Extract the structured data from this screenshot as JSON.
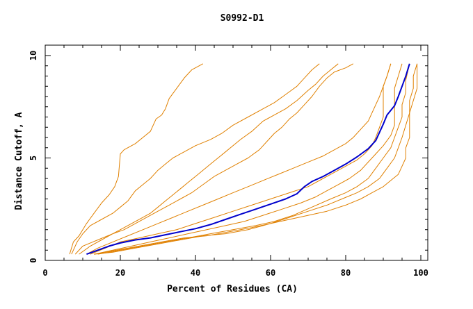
{
  "chart_data": {
    "type": "line",
    "title": "S0992-D1",
    "xlabel": "Percent of Residues (CA)",
    "ylabel": "Distance Cutoff, A",
    "xlim": [
      0,
      100
    ],
    "ylim": [
      0,
      10
    ],
    "x_ticks": [
      0,
      20,
      40,
      60,
      80,
      100
    ],
    "y_ticks": [
      0,
      5,
      10
    ],
    "grid": false,
    "highlight_color": "#0000cc",
    "other_color": "#e08000",
    "series": [
      {
        "highlight": false,
        "points": [
          [
            6.5,
            0.3
          ],
          [
            7.5,
            0.9
          ],
          [
            9,
            1.2
          ],
          [
            11,
            1.8
          ],
          [
            13,
            2.3
          ],
          [
            15,
            2.8
          ],
          [
            17,
            3.2
          ],
          [
            18.5,
            3.6
          ],
          [
            19.5,
            4.1
          ],
          [
            20,
            5.2
          ],
          [
            21,
            5.4
          ],
          [
            24,
            5.7
          ],
          [
            26,
            6.0
          ],
          [
            28,
            6.3
          ],
          [
            29.5,
            6.9
          ],
          [
            31,
            7.1
          ],
          [
            32,
            7.4
          ],
          [
            33,
            7.9
          ],
          [
            35,
            8.4
          ],
          [
            37,
            8.9
          ],
          [
            39,
            9.3
          ],
          [
            42,
            9.6
          ]
        ]
      },
      {
        "highlight": false,
        "points": [
          [
            7,
            0.3
          ],
          [
            8.5,
            0.9
          ],
          [
            10,
            1.3
          ],
          [
            12,
            1.7
          ],
          [
            15,
            2.0
          ],
          [
            18,
            2.3
          ],
          [
            20,
            2.6
          ],
          [
            22,
            2.9
          ],
          [
            24,
            3.4
          ],
          [
            26,
            3.7
          ],
          [
            28,
            4.0
          ],
          [
            30,
            4.4
          ],
          [
            32,
            4.7
          ],
          [
            34,
            5.0
          ],
          [
            37,
            5.3
          ],
          [
            40,
            5.6
          ],
          [
            44,
            5.9
          ],
          [
            47,
            6.2
          ],
          [
            50,
            6.6
          ],
          [
            54,
            7.0
          ],
          [
            58,
            7.4
          ],
          [
            61,
            7.7
          ],
          [
            64,
            8.1
          ],
          [
            67,
            8.5
          ],
          [
            69,
            8.9
          ],
          [
            71,
            9.3
          ],
          [
            73,
            9.6
          ]
        ]
      },
      {
        "highlight": false,
        "points": [
          [
            8,
            0.3
          ],
          [
            10,
            0.7
          ],
          [
            14,
            1.0
          ],
          [
            18,
            1.3
          ],
          [
            21,
            1.6
          ],
          [
            24,
            1.9
          ],
          [
            26,
            2.1
          ],
          [
            28,
            2.3
          ],
          [
            30,
            2.6
          ],
          [
            32,
            2.9
          ],
          [
            34,
            3.2
          ],
          [
            36,
            3.5
          ],
          [
            38,
            3.8
          ],
          [
            40,
            4.1
          ],
          [
            42,
            4.4
          ],
          [
            44,
            4.7
          ],
          [
            46,
            5.0
          ],
          [
            48,
            5.3
          ],
          [
            50,
            5.6
          ],
          [
            52,
            5.9
          ],
          [
            55,
            6.3
          ],
          [
            58,
            6.8
          ],
          [
            61,
            7.1
          ],
          [
            64,
            7.4
          ],
          [
            67,
            7.8
          ],
          [
            70,
            8.3
          ],
          [
            72,
            8.6
          ],
          [
            74,
            9.0
          ],
          [
            76,
            9.3
          ],
          [
            78,
            9.6
          ]
        ]
      },
      {
        "highlight": false,
        "points": [
          [
            9,
            0.3
          ],
          [
            12,
            0.7
          ],
          [
            15,
            1.0
          ],
          [
            18,
            1.3
          ],
          [
            21,
            1.5
          ],
          [
            24,
            1.8
          ],
          [
            27,
            2.1
          ],
          [
            30,
            2.4
          ],
          [
            33,
            2.7
          ],
          [
            36,
            3.0
          ],
          [
            39,
            3.3
          ],
          [
            42,
            3.7
          ],
          [
            45,
            4.1
          ],
          [
            48,
            4.4
          ],
          [
            51,
            4.7
          ],
          [
            54,
            5.0
          ],
          [
            57,
            5.4
          ],
          [
            59,
            5.8
          ],
          [
            61,
            6.2
          ],
          [
            63,
            6.5
          ],
          [
            65,
            6.9
          ],
          [
            67,
            7.2
          ],
          [
            69,
            7.6
          ],
          [
            71,
            8.0
          ],
          [
            73,
            8.5
          ],
          [
            75,
            8.9
          ],
          [
            77,
            9.2
          ],
          [
            80,
            9.4
          ],
          [
            82,
            9.6
          ]
        ]
      },
      {
        "highlight": false,
        "points": [
          [
            11,
            0.3
          ],
          [
            14,
            0.6
          ],
          [
            18,
            0.9
          ],
          [
            22,
            1.2
          ],
          [
            26,
            1.5
          ],
          [
            30,
            1.8
          ],
          [
            34,
            2.1
          ],
          [
            38,
            2.4
          ],
          [
            42,
            2.7
          ],
          [
            46,
            3.0
          ],
          [
            50,
            3.3
          ],
          [
            54,
            3.6
          ],
          [
            58,
            3.9
          ],
          [
            62,
            4.2
          ],
          [
            66,
            4.5
          ],
          [
            70,
            4.8
          ],
          [
            74,
            5.1
          ],
          [
            77,
            5.4
          ],
          [
            80,
            5.7
          ],
          [
            82,
            6.0
          ],
          [
            84,
            6.4
          ],
          [
            86,
            6.8
          ],
          [
            87,
            7.2
          ],
          [
            88,
            7.6
          ],
          [
            89,
            8.0
          ],
          [
            90,
            8.5
          ],
          [
            91,
            9.0
          ],
          [
            92,
            9.6
          ]
        ]
      },
      {
        "highlight": false,
        "points": [
          [
            12,
            0.3
          ],
          [
            16,
            0.6
          ],
          [
            20,
            0.9
          ],
          [
            25,
            1.1
          ],
          [
            30,
            1.3
          ],
          [
            35,
            1.5
          ],
          [
            40,
            1.8
          ],
          [
            45,
            2.1
          ],
          [
            50,
            2.4
          ],
          [
            55,
            2.7
          ],
          [
            60,
            3.0
          ],
          [
            65,
            3.3
          ],
          [
            70,
            3.6
          ],
          [
            74,
            4.0
          ],
          [
            77,
            4.3
          ],
          [
            80,
            4.6
          ],
          [
            83,
            4.9
          ],
          [
            85,
            5.2
          ],
          [
            87,
            5.6
          ],
          [
            88,
            6.0
          ],
          [
            89,
            6.5
          ],
          [
            90,
            7.0
          ],
          [
            90,
            7.5
          ],
          [
            90,
            8.0
          ],
          [
            90,
            8.5
          ],
          [
            91,
            9.0
          ],
          [
            92,
            9.6
          ]
        ]
      },
      {
        "highlight": false,
        "points": [
          [
            13,
            0.3
          ],
          [
            18,
            0.5
          ],
          [
            23,
            0.7
          ],
          [
            28,
            0.9
          ],
          [
            33,
            1.1
          ],
          [
            38,
            1.3
          ],
          [
            43,
            1.5
          ],
          [
            48,
            1.7
          ],
          [
            53,
            1.9
          ],
          [
            58,
            2.2
          ],
          [
            63,
            2.5
          ],
          [
            68,
            2.8
          ],
          [
            72,
            3.1
          ],
          [
            75,
            3.4
          ],
          [
            78,
            3.7
          ],
          [
            81,
            4.0
          ],
          [
            84,
            4.4
          ],
          [
            86,
            4.8
          ],
          [
            88,
            5.2
          ],
          [
            90,
            5.6
          ],
          [
            92,
            6.1
          ],
          [
            93,
            6.6
          ],
          [
            93,
            7.2
          ],
          [
            93,
            7.8
          ],
          [
            93,
            8.4
          ],
          [
            94,
            9.0
          ],
          [
            95,
            9.6
          ]
        ]
      },
      {
        "highlight": false,
        "points": [
          [
            14,
            0.3
          ],
          [
            20,
            0.5
          ],
          [
            26,
            0.7
          ],
          [
            32,
            0.9
          ],
          [
            38,
            1.1
          ],
          [
            44,
            1.3
          ],
          [
            50,
            1.5
          ],
          [
            56,
            1.7
          ],
          [
            61,
            1.9
          ],
          [
            66,
            2.2
          ],
          [
            71,
            2.6
          ],
          [
            76,
            3.0
          ],
          [
            80,
            3.3
          ],
          [
            83,
            3.6
          ],
          [
            86,
            4.0
          ],
          [
            88,
            4.5
          ],
          [
            90,
            5.0
          ],
          [
            92,
            5.5
          ],
          [
            93,
            6.0
          ],
          [
            94,
            6.5
          ],
          [
            95,
            7.0
          ],
          [
            95,
            7.6
          ],
          [
            96,
            8.2
          ],
          [
            96,
            8.8
          ],
          [
            97,
            9.6
          ]
        ]
      },
      {
        "highlight": false,
        "points": [
          [
            13,
            0.3
          ],
          [
            19,
            0.5
          ],
          [
            25,
            0.7
          ],
          [
            31,
            0.9
          ],
          [
            37,
            1.1
          ],
          [
            43,
            1.2
          ],
          [
            49,
            1.4
          ],
          [
            55,
            1.6
          ],
          [
            60,
            1.8
          ],
          [
            65,
            2.1
          ],
          [
            70,
            2.4
          ],
          [
            75,
            2.7
          ],
          [
            79,
            3.0
          ],
          [
            83,
            3.3
          ],
          [
            86,
            3.6
          ],
          [
            89,
            4.0
          ],
          [
            91,
            4.5
          ],
          [
            93,
            5.0
          ],
          [
            94,
            5.5
          ],
          [
            95,
            6.0
          ],
          [
            96,
            6.6
          ],
          [
            97,
            7.2
          ],
          [
            97,
            7.8
          ],
          [
            98,
            8.4
          ],
          [
            98,
            9.0
          ],
          [
            99,
            9.6
          ]
        ]
      },
      {
        "highlight": false,
        "points": [
          [
            13,
            0.3
          ],
          [
            18,
            0.4
          ],
          [
            24,
            0.6
          ],
          [
            30,
            0.8
          ],
          [
            36,
            1.0
          ],
          [
            42,
            1.2
          ],
          [
            48,
            1.3
          ],
          [
            54,
            1.5
          ],
          [
            60,
            1.8
          ],
          [
            65,
            2.0
          ],
          [
            70,
            2.2
          ],
          [
            75,
            2.4
          ],
          [
            80,
            2.7
          ],
          [
            84,
            3.0
          ],
          [
            87,
            3.3
          ],
          [
            90,
            3.6
          ],
          [
            92,
            3.9
          ],
          [
            94,
            4.2
          ],
          [
            95,
            4.6
          ],
          [
            96,
            5.0
          ],
          [
            96,
            5.5
          ],
          [
            97,
            6.0
          ],
          [
            97,
            6.6
          ],
          [
            97,
            7.2
          ],
          [
            98,
            7.8
          ],
          [
            99,
            8.4
          ],
          [
            99,
            9.0
          ],
          [
            99,
            9.6
          ]
        ]
      },
      {
        "highlight": true,
        "points": [
          [
            11,
            0.3
          ],
          [
            14,
            0.5
          ],
          [
            17,
            0.7
          ],
          [
            20,
            0.85
          ],
          [
            24,
            1.0
          ],
          [
            28,
            1.1
          ],
          [
            32,
            1.25
          ],
          [
            36,
            1.4
          ],
          [
            40,
            1.55
          ],
          [
            44,
            1.75
          ],
          [
            48,
            2.0
          ],
          [
            52,
            2.25
          ],
          [
            56,
            2.5
          ],
          [
            60,
            2.75
          ],
          [
            64,
            3.0
          ],
          [
            67,
            3.25
          ],
          [
            69,
            3.6
          ],
          [
            71,
            3.85
          ],
          [
            74,
            4.1
          ],
          [
            77,
            4.4
          ],
          [
            80,
            4.7
          ],
          [
            83,
            5.05
          ],
          [
            86,
            5.45
          ],
          [
            88,
            5.85
          ],
          [
            89,
            6.25
          ],
          [
            90,
            6.65
          ],
          [
            91,
            7.1
          ],
          [
            93,
            7.55
          ],
          [
            94,
            8.0
          ],
          [
            95,
            8.5
          ],
          [
            96,
            9.0
          ],
          [
            97,
            9.6
          ]
        ]
      }
    ]
  }
}
